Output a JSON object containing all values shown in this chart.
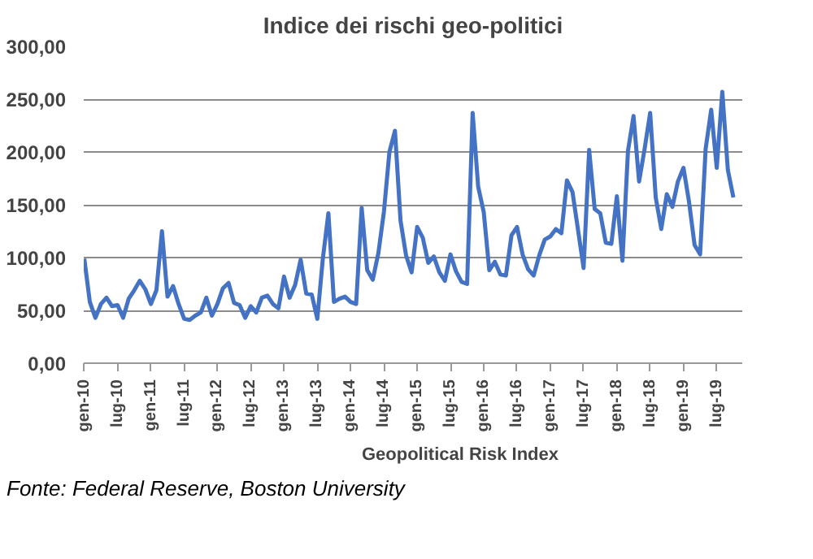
{
  "chart_data": {
    "type": "line",
    "title": "Indice dei rischi geo-politici",
    "categories": [
      "gen-10",
      null,
      null,
      null,
      null,
      null,
      "lug-10",
      null,
      null,
      null,
      null,
      null,
      "gen-11",
      null,
      null,
      null,
      null,
      null,
      "lug-11",
      null,
      null,
      null,
      null,
      null,
      "gen-12",
      null,
      null,
      null,
      null,
      null,
      "lug-12",
      null,
      null,
      null,
      null,
      null,
      "gen-13",
      null,
      null,
      null,
      null,
      null,
      "lug-13",
      null,
      null,
      null,
      null,
      null,
      "gen-14",
      null,
      null,
      null,
      null,
      null,
      "lug-14",
      null,
      null,
      null,
      null,
      null,
      "gen-15",
      null,
      null,
      null,
      null,
      null,
      "lug-15",
      null,
      null,
      null,
      null,
      null,
      "gen-16",
      null,
      null,
      null,
      null,
      null,
      "lug-16",
      null,
      null,
      null,
      null,
      null,
      "gen-17",
      null,
      null,
      null,
      null,
      null,
      "lug-17",
      null,
      null,
      null,
      null,
      null,
      "gen-18",
      null,
      null,
      null,
      null,
      null,
      "lug-18",
      null,
      null,
      null,
      null,
      null,
      "gen-19",
      null,
      null,
      null,
      null,
      null,
      "lug-19",
      null,
      null,
      null
    ],
    "series": [
      {
        "name": "Geopolitical Risk Index",
        "color": "#4472c4",
        "values": [
          99,
          58,
          43,
          56,
          62,
          54,
          55,
          43,
          61,
          69,
          78,
          70,
          56,
          69,
          125,
          63,
          73,
          56,
          42,
          41,
          45,
          48,
          62,
          45,
          56,
          71,
          76,
          57,
          55,
          43,
          54,
          48,
          62,
          64,
          56,
          52,
          82,
          62,
          74,
          98,
          66,
          65,
          42,
          99,
          142,
          58,
          61,
          63,
          58,
          56,
          147,
          88,
          79,
          104,
          143,
          200,
          220,
          135,
          102,
          86,
          129,
          119,
          95,
          101,
          86,
          78,
          103,
          87,
          77,
          75,
          237,
          167,
          143,
          88,
          96,
          84,
          83,
          121,
          129,
          103,
          89,
          83,
          102,
          117,
          120,
          127,
          123,
          173,
          162,
          126,
          90,
          202,
          146,
          142,
          114,
          113,
          158,
          97,
          201,
          234,
          172,
          203,
          237,
          157,
          127,
          160,
          148,
          172,
          185,
          153,
          112,
          103,
          203,
          240,
          185,
          257,
          183,
          157
        ]
      }
    ],
    "ylim": [
      0,
      300
    ],
    "yticks": [
      {
        "value": 0,
        "label": "0,00"
      },
      {
        "value": 50,
        "label": "50,00"
      },
      {
        "value": 100,
        "label": "100,00"
      },
      {
        "value": 150,
        "label": "150,00"
      },
      {
        "value": 200,
        "label": "200,00"
      },
      {
        "value": 250,
        "label": "250,00"
      },
      {
        "value": 300,
        "label": "300,00"
      }
    ],
    "grid": "y",
    "legend": "bottom",
    "marker": "none",
    "line_style": "solid",
    "annotations": [
      "Fonte: Federal Reserve, Boston University"
    ]
  }
}
